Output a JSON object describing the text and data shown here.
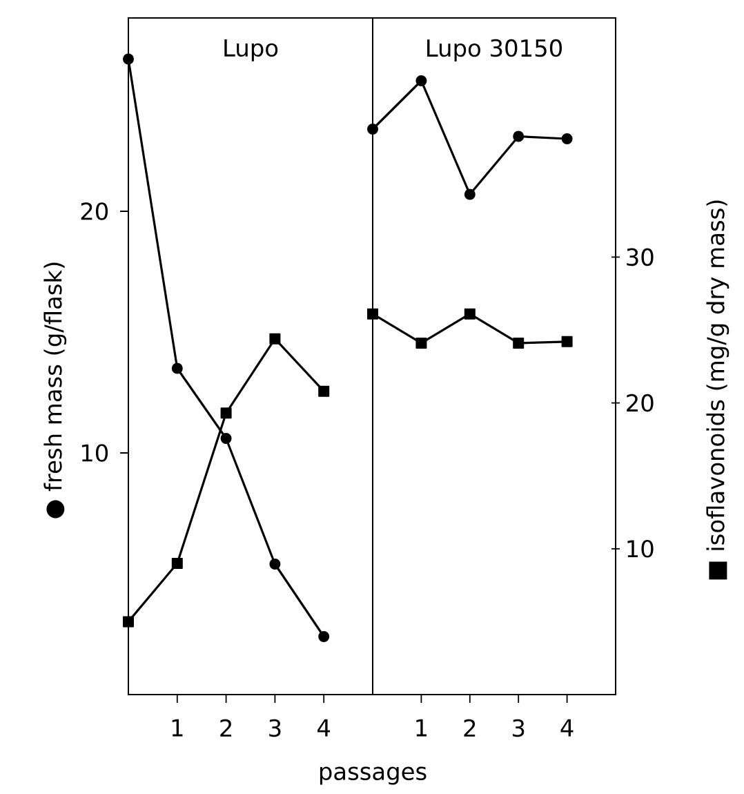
{
  "chart_data": [
    {
      "type": "line",
      "title": "Lupo",
      "xlabel": "passages",
      "ylabel": "● fresh mass (g/flask)",
      "x": [
        0,
        1,
        2,
        3,
        4
      ],
      "xlim": [
        0,
        5
      ],
      "xticks": [
        1,
        2,
        3,
        4
      ],
      "ylim": [
        0,
        28
      ],
      "yticks": [
        10,
        20
      ],
      "y2lim": [
        0,
        46.4
      ],
      "tick_labels": [
        "x",
        "y"
      ],
      "series": [
        {
          "color": "#000000",
          "marker": "circle",
          "values": [
            26.3,
            13.5,
            10.6,
            5.4,
            2.4
          ]
        },
        {
          "color": "#000000",
          "marker": "square",
          "axis": "y2",
          "values": [
            5.0,
            9.0,
            19.3,
            24.4,
            20.8
          ]
        }
      ]
    },
    {
      "type": "line",
      "title": "Lupo 30150",
      "y2label": "■ isoflavonoids (mg/g dry mass)",
      "x": [
        0,
        1,
        2,
        3,
        4
      ],
      "xlim": [
        0,
        5
      ],
      "xticks": [
        1,
        2,
        3,
        4
      ],
      "ylim": [
        0,
        28
      ],
      "y2lim": [
        0,
        46.4
      ],
      "y2ticks": [
        10,
        20,
        30
      ],
      "tick_labels": [
        "x",
        "y2"
      ],
      "series": [
        {
          "color": "#000000",
          "marker": "circle",
          "values": [
            23.4,
            25.4,
            20.7,
            23.1,
            23.0
          ]
        },
        {
          "color": "#000000",
          "marker": "square",
          "axis": "y2",
          "values": [
            26.1,
            24.1,
            26.1,
            24.1,
            24.2
          ]
        }
      ]
    }
  ]
}
